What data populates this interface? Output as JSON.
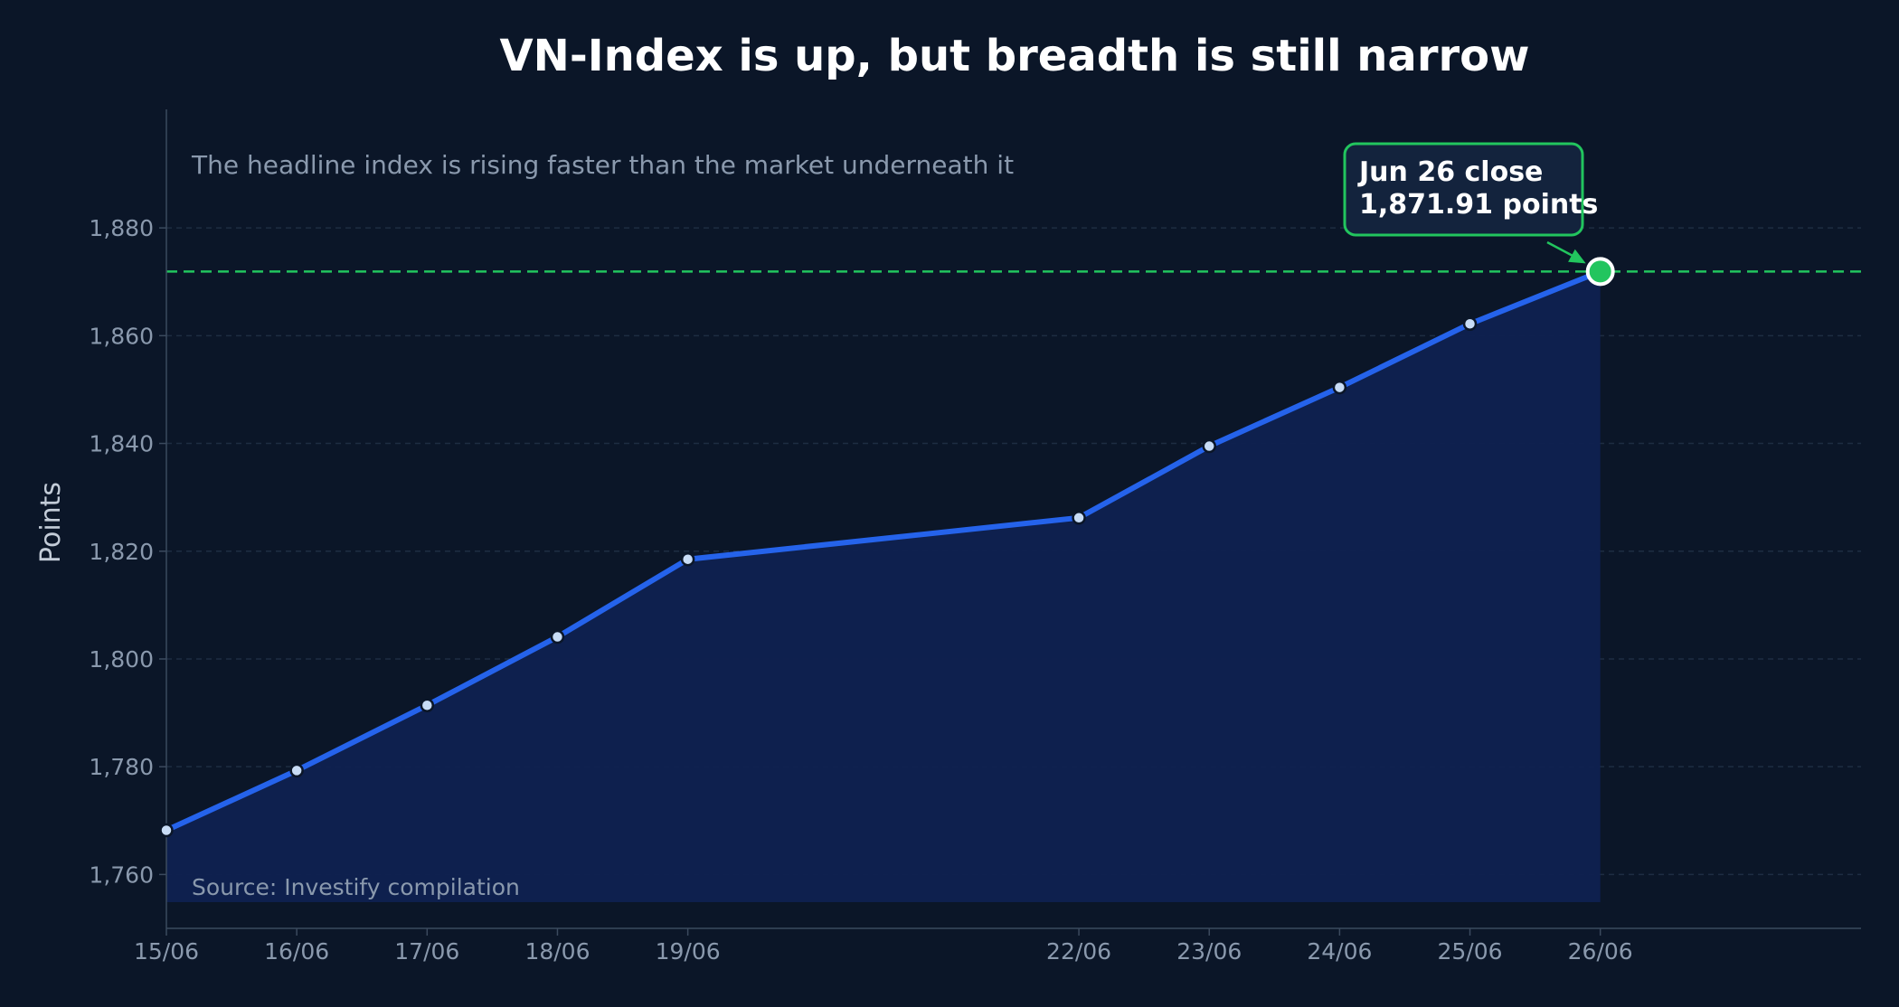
{
  "colors": {
    "background": "#0b1628",
    "line": "#2563eb",
    "area": "#0f2150",
    "highlight": "#22c55e",
    "grid": "#1e2d42",
    "axis": "#3b4a5e",
    "text_muted": "#8a99ad",
    "text_title": "#ffffff",
    "marker_fill": "#c8dcf5",
    "annotation_bg": "#13233d"
  },
  "chart_data": {
    "type": "line",
    "title": "VN-Index is up, but breadth is still narrow",
    "subtitle": "The headline index is rising faster than the market underneath it",
    "source": "Source: Investify compilation",
    "ylabel": "Points",
    "xlabel": "",
    "x_dates": [
      "2025-06-15",
      "2025-06-16",
      "2025-06-17",
      "2025-06-18",
      "2025-06-19",
      "2025-06-22",
      "2025-06-23",
      "2025-06-24",
      "2025-06-25",
      "2025-06-26"
    ],
    "x_tick_labels": [
      "15/06",
      "16/06",
      "17/06",
      "18/06",
      "19/06",
      "22/06",
      "23/06",
      "24/06",
      "25/06",
      "26/06"
    ],
    "x_range": [
      "2025-06-15",
      "2025-06-28"
    ],
    "values": [
      1768.2,
      1779.3,
      1791.4,
      1804.1,
      1818.5,
      1826.2,
      1839.5,
      1850.4,
      1862.2,
      1871.91
    ],
    "ylim": [
      1750,
      1902
    ],
    "yticks": [
      1760,
      1780,
      1800,
      1820,
      1840,
      1860,
      1880
    ],
    "ytick_labels": [
      "1,760",
      "1,780",
      "1,800",
      "1,820",
      "1,840",
      "1,860",
      "1,880"
    ],
    "grid": true,
    "area_fill": true,
    "reference_line": {
      "value": 1871.91,
      "style": "dashed"
    },
    "annotation": {
      "line1": "Jun 26 close",
      "line2": "1,871.91 points",
      "x": "2025-06-26",
      "y": 1871.91
    }
  }
}
